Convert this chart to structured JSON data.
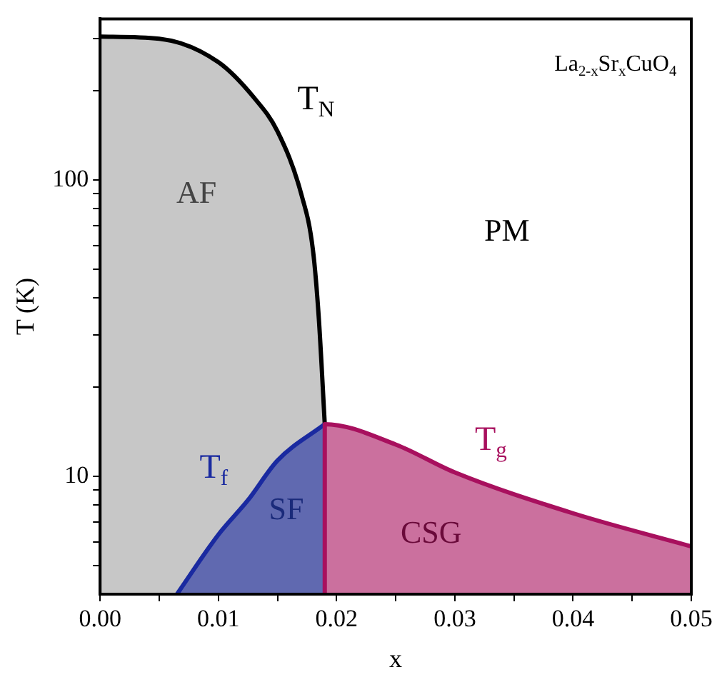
{
  "chart_data": {
    "type": "area",
    "xlabel": "x",
    "ylabel": "T (K)",
    "xlim": [
      0,
      0.05
    ],
    "xticks": [
      {
        "value": 0,
        "label": "0.00"
      },
      {
        "value": 0.005,
        "label": null
      },
      {
        "value": 0.01,
        "label": "0.01"
      },
      {
        "value": 0.015,
        "label": null
      },
      {
        "value": 0.02,
        "label": "0.02"
      },
      {
        "value": 0.025,
        "label": null
      },
      {
        "value": 0.03,
        "label": "0.03"
      },
      {
        "value": 0.035,
        "label": null
      },
      {
        "value": 0.04,
        "label": "0.04"
      },
      {
        "value": 0.045,
        "label": null
      },
      {
        "value": 0.05,
        "label": "0.05"
      }
    ],
    "ylim": [
      4,
      350
    ],
    "log": "y",
    "yticks": [
      {
        "value": 5,
        "label": null
      },
      {
        "value": 6,
        "label": null
      },
      {
        "value": 7,
        "label": null
      },
      {
        "value": 8,
        "label": null
      },
      {
        "value": 9,
        "label": null
      },
      10,
      {
        "value": 20,
        "label": null
      },
      {
        "value": 30,
        "label": null
      },
      {
        "value": 40,
        "label": null
      },
      {
        "value": 50,
        "label": null
      },
      {
        "value": 60,
        "label": null
      },
      {
        "value": 70,
        "label": null
      },
      {
        "value": 80,
        "label": null
      },
      {
        "value": 90,
        "label": null
      },
      100,
      {
        "value": 200,
        "label": null
      },
      {
        "value": 300,
        "label": null
      }
    ],
    "grid": false,
    "legend": false,
    "marker": "none",
    "line_style": "solid",
    "series": [
      {
        "name": "T$_{N}$",
        "color": "#000000",
        "x": [
          0,
          0.005,
          0.01,
          0.013,
          0.015,
          0.017,
          0.018,
          0.0185,
          0.019
        ],
        "values": [
          305,
          300,
          250,
          190,
          146,
          90,
          58,
          34,
          15
        ]
      },
      {
        "name": "T$_{f}$",
        "color": "#1a2aa0",
        "x": [
          0.0065,
          0.01,
          0.0125,
          0.015,
          0.019
        ],
        "values": [
          4,
          6.35,
          8.3,
          11.3,
          15
        ]
      },
      {
        "name": "T$_{g}$",
        "color": "#a8105e",
        "x": [
          0.019,
          0.019,
          0.025,
          0.03,
          0.04,
          0.05
        ],
        "values": [
          4,
          15,
          12.8,
          10.3,
          7.5,
          5.8
        ]
      }
    ],
    "annotations": [
      "AF",
      "PM",
      "SF",
      "CSG",
      "La$_{2-x}$Sr$_{x}$CuO$_{4}$"
    ]
  }
}
